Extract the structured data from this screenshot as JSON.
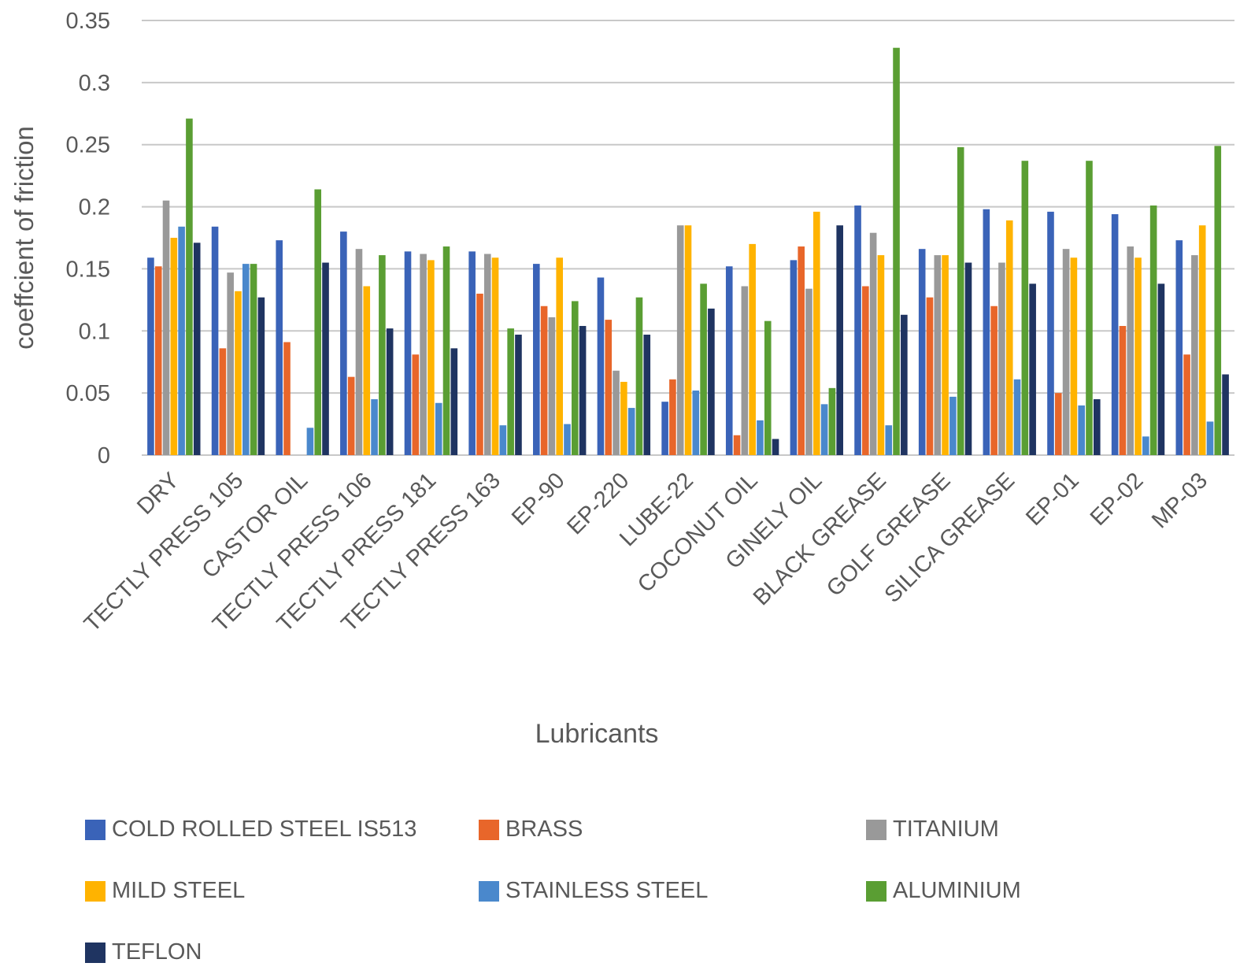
{
  "chart_data": {
    "type": "bar",
    "title": "",
    "xlabel": "Lubricants",
    "ylabel": "coeffcient of friction",
    "ylim": [
      0,
      0.35
    ],
    "yticks": [
      "0",
      "0.05",
      "0.1",
      "0.15",
      "0.2",
      "0.25",
      "0.3",
      "0.35"
    ],
    "ytick_values": [
      0,
      0.05,
      0.1,
      0.15,
      0.2,
      0.25,
      0.3,
      0.35
    ],
    "grid": true,
    "legend_position": "bottom",
    "categories": [
      "DRY",
      "TECTLY PRESS 105",
      "CASTOR OIL",
      "TECTLY PRESS 106",
      "TECTLY PRESS 181",
      "TECTLY PRESS 163",
      "EP-90",
      "EP-220",
      "LUBE-22",
      "COCONUT OIL",
      "GINELY OIL",
      "BLACK GREASE",
      "GOLF GREASE",
      "SILICA GREASE",
      "EP-01",
      "EP-02",
      "MP-03"
    ],
    "series": [
      {
        "name": "COLD ROLLED STEEL IS513",
        "color": "#3A63B8",
        "values": [
          0.159,
          0.184,
          0.173,
          0.18,
          0.164,
          0.164,
          0.154,
          0.143,
          0.043,
          0.152,
          0.157,
          0.201,
          0.166,
          0.198,
          0.196,
          0.194,
          0.173
        ]
      },
      {
        "name": "BRASS",
        "color": "#E8662A",
        "values": [
          0.152,
          0.086,
          0.091,
          0.063,
          0.081,
          0.13,
          0.12,
          0.109,
          0.061,
          0.016,
          0.168,
          0.136,
          0.127,
          0.12,
          0.05,
          0.104,
          0.081
        ]
      },
      {
        "name": "TITANIUM",
        "color": "#999999",
        "values": [
          0.205,
          0.147,
          0,
          0.166,
          0.162,
          0.162,
          0.111,
          0.068,
          0.185,
          0.136,
          0.134,
          0.179,
          0.161,
          0.155,
          0.166,
          0.168,
          0.161
        ]
      },
      {
        "name": "MILD STEEL",
        "color": "#FFB300",
        "values": [
          0.175,
          0.132,
          0,
          0.136,
          0.157,
          0.159,
          0.159,
          0.059,
          0.185,
          0.17,
          0.196,
          0.161,
          0.161,
          0.189,
          0.159,
          0.159,
          0.185
        ]
      },
      {
        "name": "STAINLESS STEEL",
        "color": "#4A88CC",
        "values": [
          0.184,
          0.154,
          0.022,
          0.045,
          0.042,
          0.024,
          0.025,
          0.038,
          0.052,
          0.028,
          0.041,
          0.024,
          0.047,
          0.061,
          0.04,
          0.015,
          0.027
        ]
      },
      {
        "name": "ALUMINIUM",
        "color": "#5A9E33",
        "values": [
          0.271,
          0.154,
          0.214,
          0.161,
          0.168,
          0.102,
          0.124,
          0.127,
          0.138,
          0.108,
          0.054,
          0.328,
          0.248,
          0.237,
          0.237,
          0.201,
          0.249
        ]
      },
      {
        "name": "TEFLON",
        "color": "#1F3461",
        "values": [
          0.171,
          0.127,
          0.155,
          0.102,
          0.086,
          0.097,
          0.104,
          0.097,
          0.118,
          0.013,
          0.185,
          0.113,
          0.155,
          0.138,
          0.045,
          0.138,
          0.065
        ]
      }
    ]
  }
}
